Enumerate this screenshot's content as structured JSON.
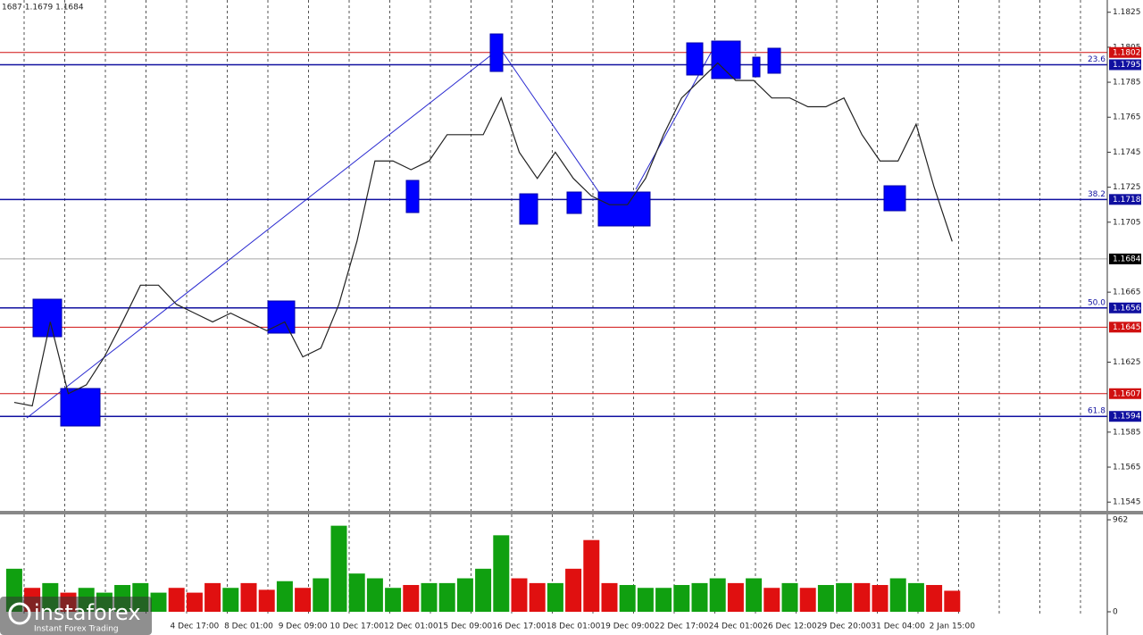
{
  "chart_data": [
    {
      "type": "line",
      "header": "1687 1.1679 1.1684",
      "categories": [
        null,
        null,
        null,
        null,
        null,
        null,
        null,
        null,
        null,
        null,
        "4 Dec 17:00",
        null,
        null,
        "8 Dec 01:00",
        null,
        null,
        "9 Dec 09:00",
        null,
        null,
        "10 Dec 17:00",
        null,
        null,
        "12 Dec 01:00",
        null,
        null,
        "15 Dec 09:00",
        null,
        null,
        "16 Dec 17:00",
        null,
        null,
        "18 Dec 01:00",
        null,
        null,
        "19 Dec 09:00",
        null,
        null,
        "22 Dec 17:00",
        null,
        null,
        "24 Dec 01:00",
        null,
        null,
        "26 Dec 12:00",
        null,
        null,
        "29 Dec 20:00",
        null,
        null,
        "31 Dec 04:00",
        null,
        null,
        "2 Jan 15:00"
      ],
      "values": [
        1.1602,
        1.16,
        1.1648,
        1.1607,
        1.1612,
        1.1628,
        1.1648,
        1.1669,
        1.1669,
        1.1658,
        1.1653,
        1.1648,
        1.1653,
        1.1648,
        1.1643,
        1.1648,
        1.1628,
        1.1633,
        1.1658,
        1.1694,
        1.174,
        1.174,
        1.1735,
        1.174,
        1.1755,
        1.1755,
        1.1755,
        1.1776,
        1.1745,
        1.173,
        1.1745,
        1.173,
        1.172,
        1.1715,
        1.1715,
        1.173,
        1.1755,
        1.1776,
        1.1786,
        1.1796,
        1.1786,
        1.1786,
        1.1776,
        1.1776,
        1.1771,
        1.1771,
        1.1776,
        1.1755,
        1.174,
        1.174,
        1.1761,
        1.1725,
        1.1694
      ],
      "color": "#222222",
      "ylim": [
        1.154,
        1.1832
      ],
      "yticks": [
        1.1825,
        1.1805,
        1.1785,
        1.1765,
        1.1745,
        1.1725,
        1.1705,
        1.1665,
        1.1625,
        1.1585,
        1.1565,
        1.1545
      ],
      "levels": [
        {
          "value": 1.1802,
          "color": "#d01010"
        },
        {
          "value": 1.1795,
          "color": "#1010a0",
          "fib": "23.6"
        },
        {
          "value": 1.1718,
          "color": "#1010a0",
          "fib": "38.2"
        },
        {
          "value": 1.1684,
          "color": "#000000"
        },
        {
          "value": 1.1656,
          "color": "#1010a0",
          "fib": "50.0"
        },
        {
          "value": 1.1645,
          "color": "#d01010"
        },
        {
          "value": 1.1607,
          "color": "#d01010"
        },
        {
          "value": 1.1594,
          "color": "#1010a0",
          "fib": "61.8"
        }
      ],
      "watermark": "instaforex",
      "watermark_sub": "Instant Forex Trading"
    },
    {
      "type": "bar",
      "values": [
        450,
        250,
        300,
        200,
        250,
        200,
        280,
        300,
        200,
        250,
        200,
        300,
        250,
        300,
        230,
        320,
        250,
        350,
        900,
        400,
        350,
        250,
        280,
        300,
        300,
        350,
        450,
        800,
        350,
        300,
        300,
        450,
        750,
        300,
        280,
        250,
        250,
        280,
        300,
        350,
        300,
        350,
        250,
        300,
        250,
        280,
        300,
        300,
        280,
        350,
        300,
        280,
        220
      ],
      "up_color": "#10a010",
      "down_color": "#e01010",
      "ylim": [
        0,
        962
      ],
      "yticks": [
        0,
        962
      ]
    }
  ]
}
